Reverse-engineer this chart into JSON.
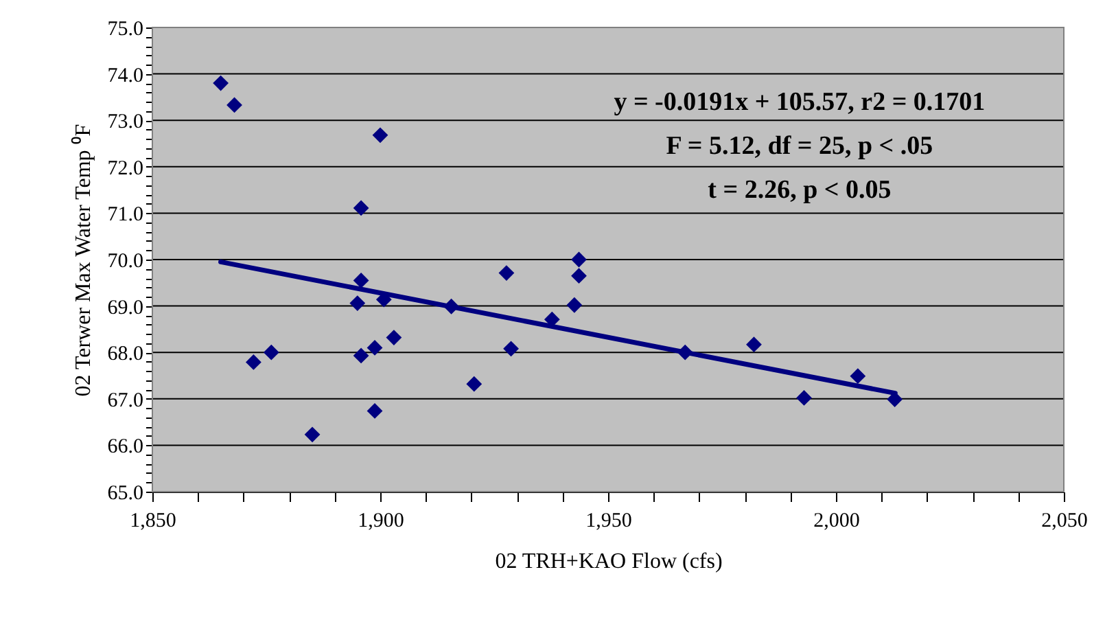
{
  "chart_data": {
    "type": "scatter",
    "xlabel": "02 TRH+KAO Flow (cfs)",
    "ylabel": "02 Terwer Max Water Temp ⁰F",
    "series": [
      {
        "color": "#000080",
        "marker": "diamond",
        "x": [
          1865.0,
          1868.0,
          1900.0,
          1895.8,
          1895.8,
          1895.0,
          1900.8,
          1915.6,
          1927.7,
          1937.7,
          1942.6,
          1943.6,
          1943.6,
          1872.2,
          1876.1,
          1885.1,
          1895.8,
          1898.8,
          1903.0,
          1898.8,
          1920.6,
          1928.7,
          1966.9,
          1982.0,
          1993.0,
          2004.8,
          2012.9
        ],
        "values": [
          73.8,
          73.33,
          72.68,
          71.11,
          69.55,
          69.06,
          69.14,
          68.99,
          69.71,
          68.71,
          69.02,
          70.0,
          69.65,
          67.79,
          68.0,
          66.23,
          67.93,
          68.1,
          68.32,
          66.74,
          67.32,
          68.08,
          68.0,
          68.17,
          67.02,
          67.49,
          66.99
        ]
      },
      {
        "type": "line",
        "color": "#000080",
        "line_style": "solid",
        "x": [
          1865.0,
          2013.0
        ],
        "values": [
          69.95,
          67.12
        ]
      }
    ],
    "xlim": [
      1850,
      2050
    ],
    "xticks": [
      {
        "value": 1850,
        "label": "1,850"
      },
      {
        "value": 1860,
        "label": null
      },
      {
        "value": 1870,
        "label": null
      },
      {
        "value": 1880,
        "label": null
      },
      {
        "value": 1890,
        "label": null
      },
      {
        "value": 1900,
        "label": "1,900"
      },
      {
        "value": 1910,
        "label": null
      },
      {
        "value": 1920,
        "label": null
      },
      {
        "value": 1930,
        "label": null
      },
      {
        "value": 1940,
        "label": null
      },
      {
        "value": 1950,
        "label": "1,950"
      },
      {
        "value": 1960,
        "label": null
      },
      {
        "value": 1970,
        "label": null
      },
      {
        "value": 1980,
        "label": null
      },
      {
        "value": 1990,
        "label": null
      },
      {
        "value": 2000,
        "label": "2,000"
      },
      {
        "value": 2010,
        "label": null
      },
      {
        "value": 2020,
        "label": null
      },
      {
        "value": 2030,
        "label": null
      },
      {
        "value": 2040,
        "label": null
      },
      {
        "value": 2050,
        "label": "2,050"
      }
    ],
    "ylim": [
      65,
      75
    ],
    "yticks": [
      {
        "value": 65,
        "label": "65.0"
      },
      {
        "value": 65.2,
        "label": null
      },
      {
        "value": 65.4,
        "label": null
      },
      {
        "value": 65.6,
        "label": null
      },
      {
        "value": 65.8,
        "label": null
      },
      {
        "value": 66,
        "label": "66.0"
      },
      {
        "value": 66.2,
        "label": null
      },
      {
        "value": 66.4,
        "label": null
      },
      {
        "value": 66.6,
        "label": null
      },
      {
        "value": 66.8,
        "label": null
      },
      {
        "value": 67,
        "label": "67.0"
      },
      {
        "value": 67.2,
        "label": null
      },
      {
        "value": 67.4,
        "label": null
      },
      {
        "value": 67.6,
        "label": null
      },
      {
        "value": 67.8,
        "label": null
      },
      {
        "value": 68,
        "label": "68.0"
      },
      {
        "value": 68.2,
        "label": null
      },
      {
        "value": 68.4,
        "label": null
      },
      {
        "value": 68.6,
        "label": null
      },
      {
        "value": 68.8,
        "label": null
      },
      {
        "value": 69,
        "label": "69.0"
      },
      {
        "value": 69.2,
        "label": null
      },
      {
        "value": 69.4,
        "label": null
      },
      {
        "value": 69.6,
        "label": null
      },
      {
        "value": 69.8,
        "label": null
      },
      {
        "value": 70,
        "label": "70.0"
      },
      {
        "value": 70.2,
        "label": null
      },
      {
        "value": 70.4,
        "label": null
      },
      {
        "value": 70.6,
        "label": null
      },
      {
        "value": 70.8,
        "label": null
      },
      {
        "value": 71,
        "label": "71.0"
      },
      {
        "value": 71.2,
        "label": null
      },
      {
        "value": 71.4,
        "label": null
      },
      {
        "value": 71.6,
        "label": null
      },
      {
        "value": 71.8,
        "label": null
      },
      {
        "value": 72,
        "label": "72.0"
      },
      {
        "value": 72.2,
        "label": null
      },
      {
        "value": 72.4,
        "label": null
      },
      {
        "value": 72.6,
        "label": null
      },
      {
        "value": 72.8,
        "label": null
      },
      {
        "value": 73,
        "label": "73.0"
      },
      {
        "value": 73.2,
        "label": null
      },
      {
        "value": 73.4,
        "label": null
      },
      {
        "value": 73.6,
        "label": null
      },
      {
        "value": 73.8,
        "label": null
      },
      {
        "value": 74,
        "label": "74.0"
      },
      {
        "value": 74.2,
        "label": null
      },
      {
        "value": 74.4,
        "label": null
      },
      {
        "value": 74.6,
        "label": null
      },
      {
        "value": 74.8,
        "label": null
      },
      {
        "value": 75,
        "label": "75.0"
      }
    ],
    "grid": "y",
    "annotations": [
      "y = -0.0191x + 105.57, r2 = 0.1701",
      "F = 5.12, df = 25, p < .05",
      "t = 2.26, p < 0.05"
    ]
  }
}
